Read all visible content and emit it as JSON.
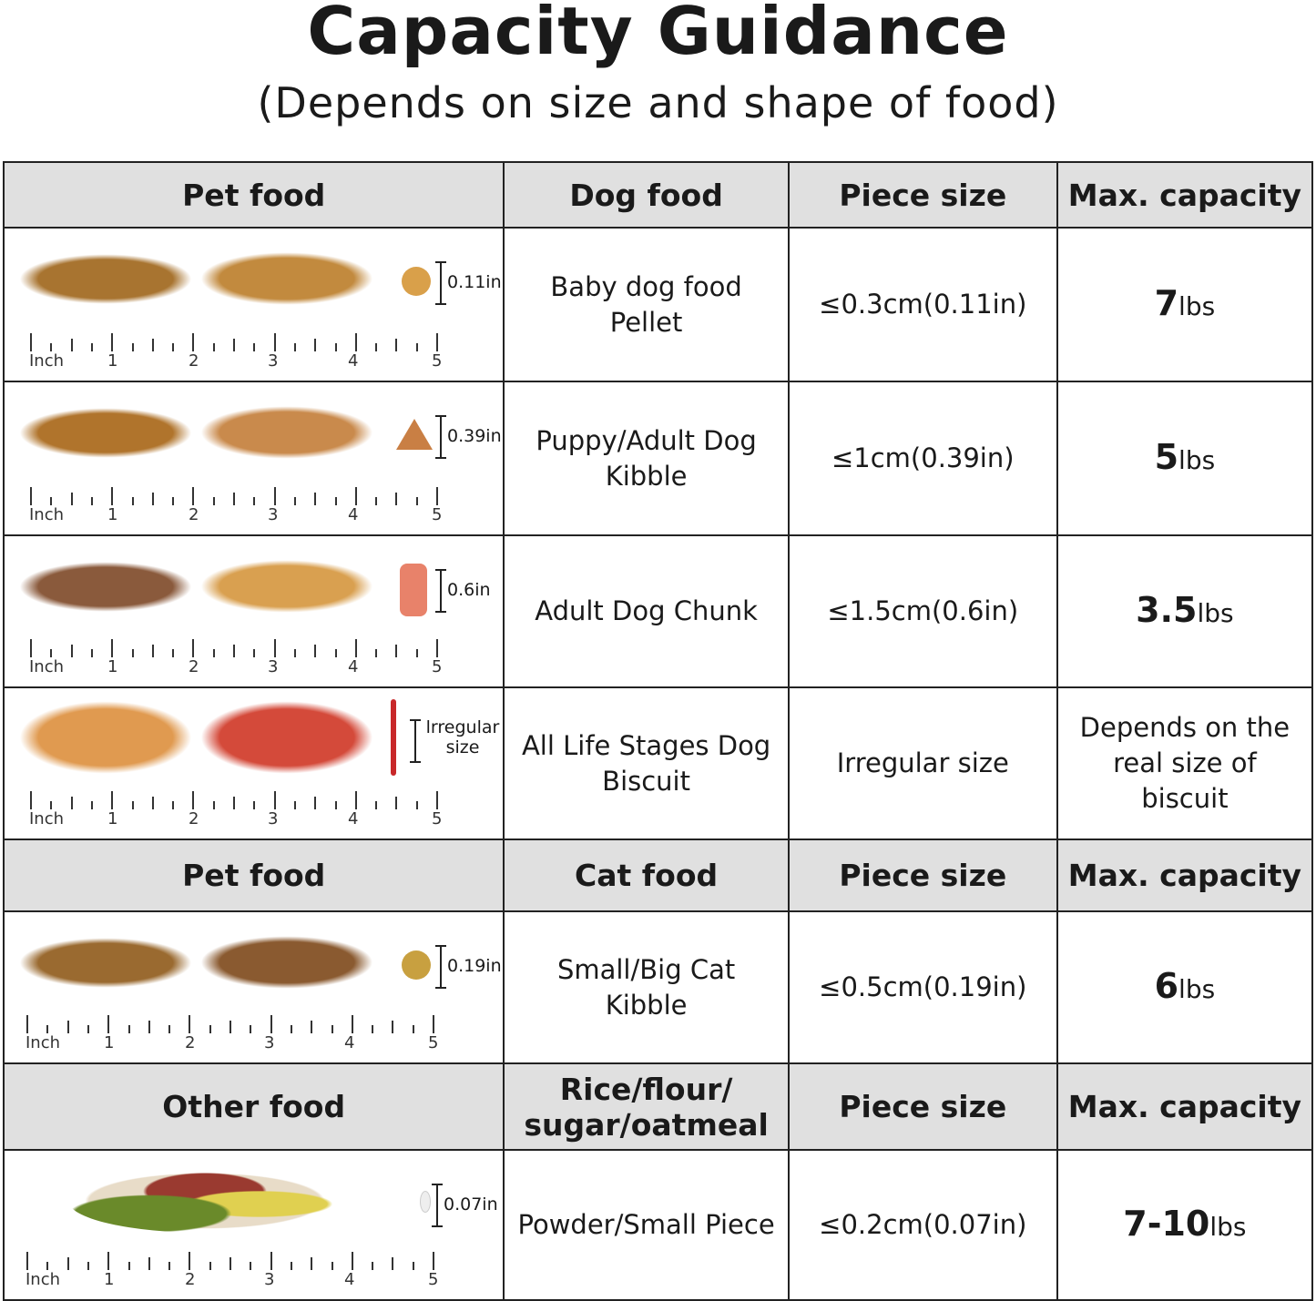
{
  "title": "Capacity Guidance",
  "subtitle": "(Depends on size and shape of food)",
  "ruler": {
    "unit": "Inch",
    "labels": [
      "1",
      "2",
      "3",
      "4",
      "5"
    ]
  },
  "sections": [
    {
      "headers": [
        "Pet food",
        "Dog food",
        "Piece size",
        "Max. capacity"
      ],
      "rows": [
        {
          "size_label": "0.11in",
          "food": "Baby dog food Pellet",
          "piece": "≤0.3cm(0.11in)",
          "cap_num": "7",
          "cap_unit": "lbs",
          "colors": [
            "#a87430",
            "#c28a3e",
            "#d9a04a"
          ],
          "piece_shape": "round"
        },
        {
          "size_label": "0.39in",
          "food": "Puppy/Adult Dog Kibble",
          "piece": "≤1cm(0.39in)",
          "cap_num": "5",
          "cap_unit": "lbs",
          "colors": [
            "#b0742c",
            "#c98a4c",
            "#c97f44"
          ],
          "piece_shape": "triangle"
        },
        {
          "size_label": "0.6in",
          "food": "Adult Dog Chunk",
          "piece": "≤1.5cm(0.6in)",
          "cap_num": "3.5",
          "cap_unit": "lbs",
          "colors": [
            "#8a5a3c",
            "#d9a050",
            "#e8826a"
          ],
          "piece_shape": "bone"
        },
        {
          "size_label": "lrregular size",
          "food": "All Life Stages Dog Biscuit",
          "piece": "Irregular size",
          "cap_text": "Depends on the real size of biscuit",
          "colors": [
            "#e09a50",
            "#d44a3a",
            "#c8282a"
          ],
          "piece_shape": "stick"
        }
      ]
    },
    {
      "headers": [
        "Pet food",
        "Cat food",
        "Piece size",
        "Max. capacity"
      ],
      "rows": [
        {
          "size_label": "0.19in",
          "food": "Small/Big Cat Kibble",
          "piece": "≤0.5cm(0.19in)",
          "cap_num": "6",
          "cap_unit": "lbs",
          "colors": [
            "#9a6a30",
            "#8a5a30",
            "#c8a040"
          ],
          "piece_shape": "round"
        }
      ]
    },
    {
      "headers": [
        "Other food",
        "Rice/flour/ sugar/oatmeal",
        "Piece size",
        "Max. capacity"
      ],
      "rows": [
        {
          "size_label": "0.07in",
          "food": "Powder/Small Piece",
          "piece": "≤0.2cm(0.07in)",
          "cap_num": "7-10",
          "cap_unit": "lbs",
          "colors": [
            "#6a8a2a",
            "#9a3a30",
            "#e0d050"
          ],
          "piece_shape": "rice"
        }
      ]
    }
  ]
}
